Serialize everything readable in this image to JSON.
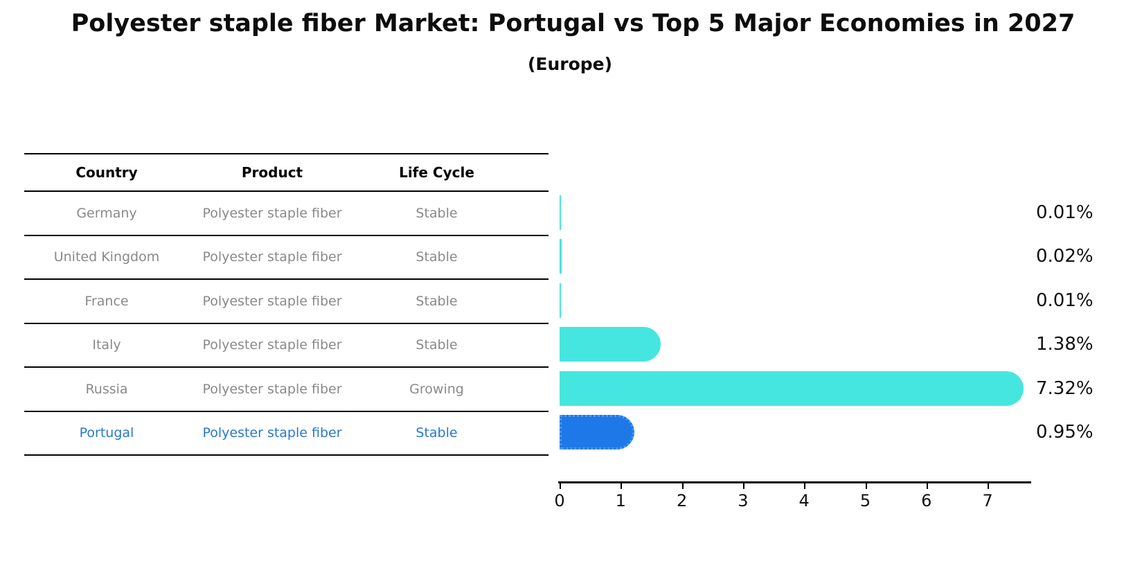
{
  "title": "Polyester staple fiber Market: Portugal vs Top 5 Major Economies in 2027",
  "subtitle": "(Europe)",
  "table": {
    "columns": [
      "Country",
      "Product",
      "Life Cycle"
    ],
    "rows": [
      {
        "country": "Germany",
        "product": "Polyester staple fiber",
        "life_cycle": "Stable",
        "highlight": false
      },
      {
        "country": "United Kingdom",
        "product": "Polyester staple fiber",
        "life_cycle": "Stable",
        "highlight": false
      },
      {
        "country": "France",
        "product": "Polyester staple fiber",
        "life_cycle": "Stable",
        "highlight": false
      },
      {
        "country": "Italy",
        "product": "Polyester staple fiber",
        "life_cycle": "Stable",
        "highlight": false
      },
      {
        "country": "Russia",
        "product": "Polyester staple fiber",
        "life_cycle": "Growing",
        "highlight": false
      },
      {
        "country": "Portugal",
        "product": "Polyester staple fiber",
        "life_cycle": "Stable",
        "highlight": true
      }
    ]
  },
  "chart_data": {
    "type": "bar",
    "orientation": "horizontal",
    "title": "Polyester staple fiber Market: Portugal vs Top 5 Major Economies in 2027",
    "subtitle": "(Europe)",
    "categories": [
      "Germany",
      "United Kingdom",
      "France",
      "Italy",
      "Russia",
      "Portugal"
    ],
    "values": [
      0.01,
      0.02,
      0.01,
      1.38,
      7.32,
      0.95
    ],
    "value_labels": [
      "0.01%",
      "0.02%",
      "0.01%",
      "1.38%",
      "7.32%",
      "0.95%"
    ],
    "xlim": [
      0,
      7.7
    ],
    "xticks": [
      0,
      1,
      2,
      3,
      4,
      5,
      6,
      7
    ],
    "grid": false,
    "legend": false,
    "highlight_category": "Portugal",
    "colors": {
      "bar_default": "#45e6df",
      "bar_highlight": "#1e78e8",
      "highlight_border": "#4d9bf0",
      "highlight_text": "#2878ce",
      "row_text": "#898989",
      "header_text": "#000000",
      "label_text": "#111111"
    }
  }
}
